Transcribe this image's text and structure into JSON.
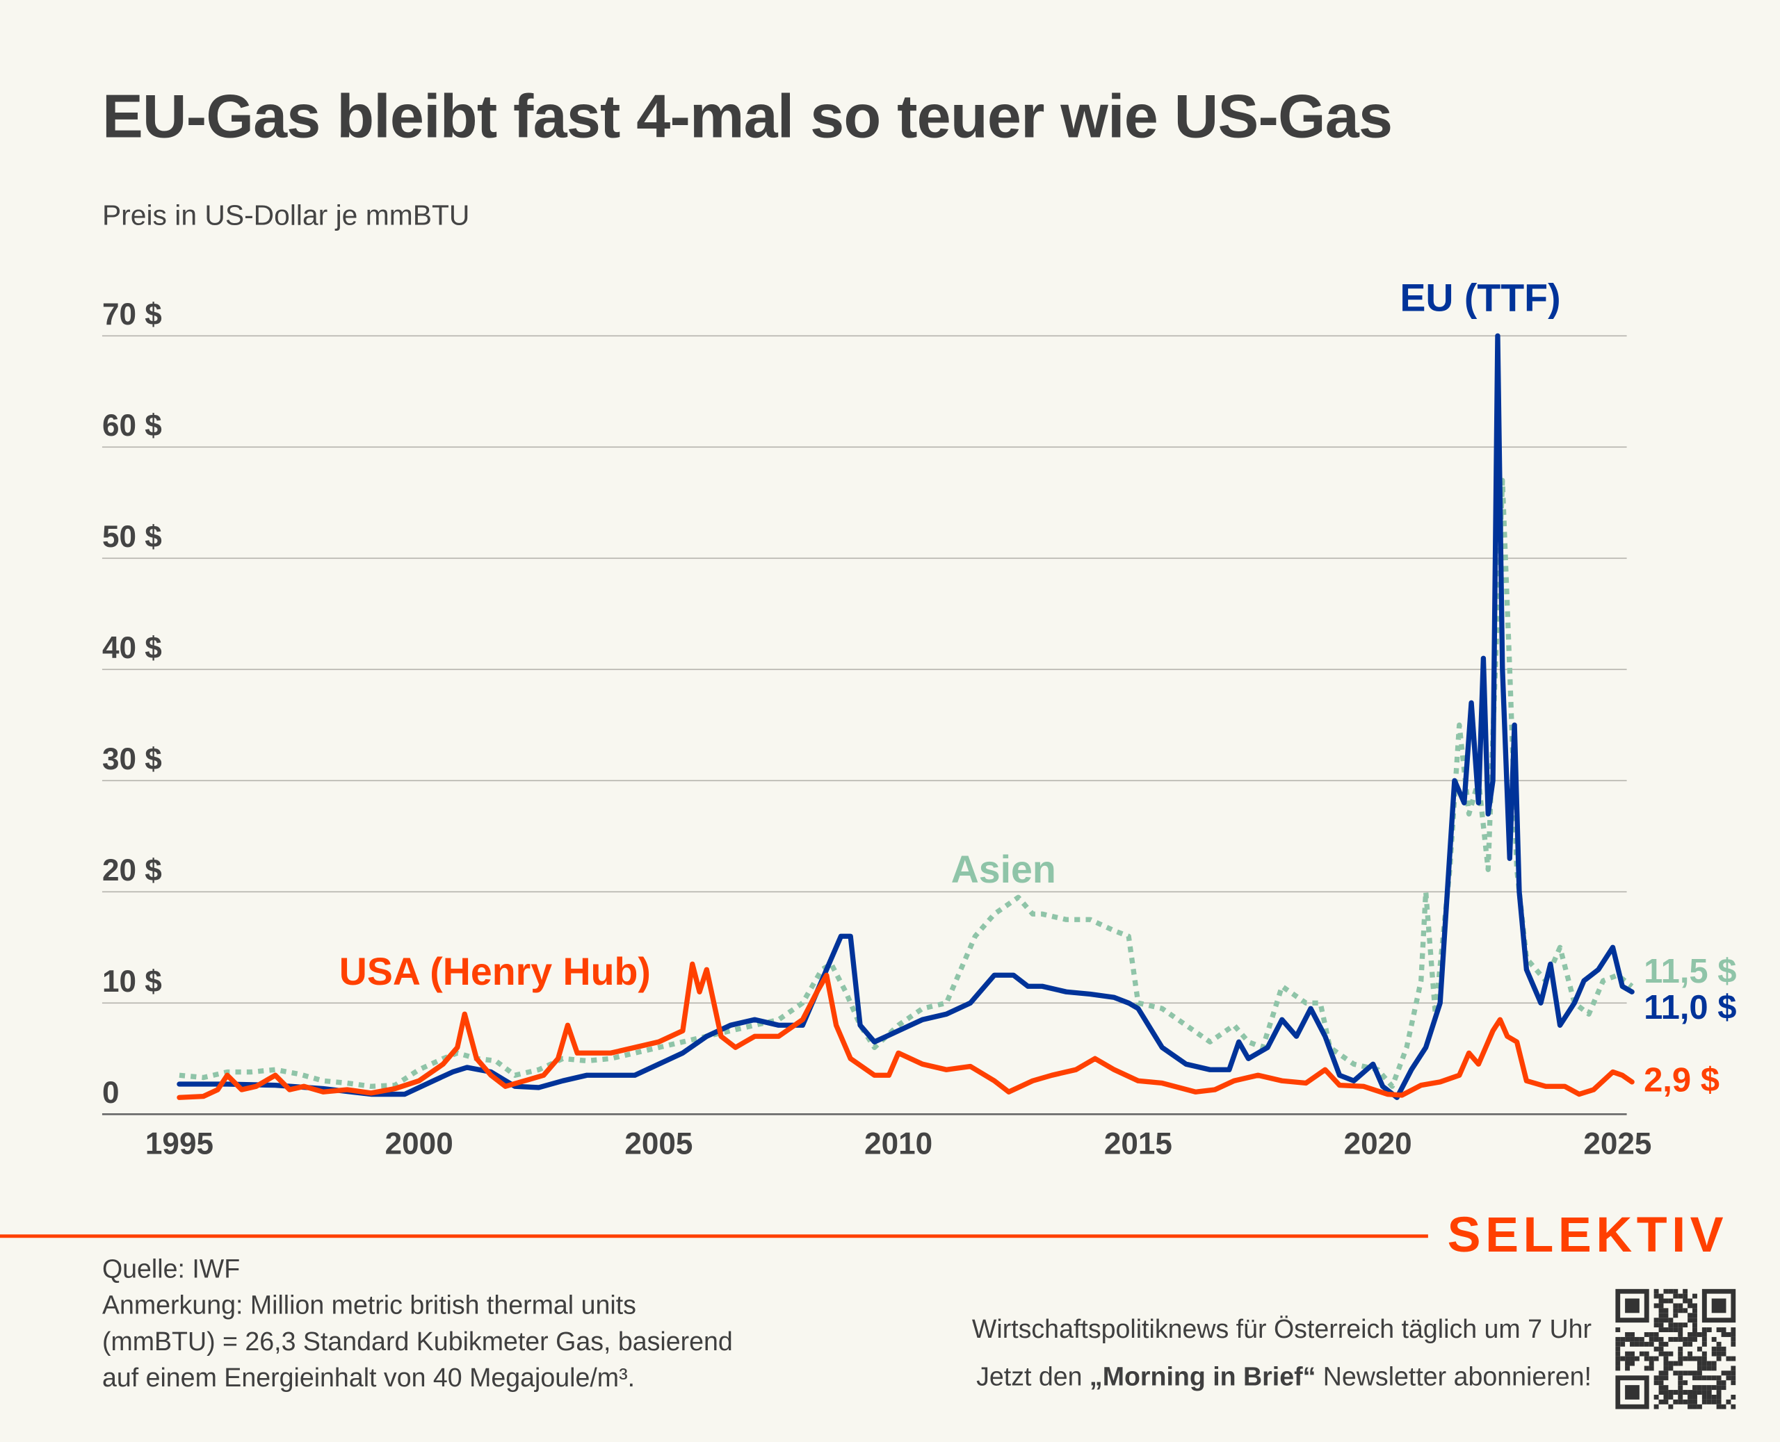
{
  "header": {
    "title": "EU-Gas bleibt fast 4-mal so teuer wie US-Gas",
    "subtitle": "Preis in US-Dollar je mmBTU"
  },
  "colors": {
    "usa": "#ff4000",
    "eu": "#003399",
    "asia": "#8fc4a8",
    "grid": "#b5b3ad",
    "background": "#f8f7f0"
  },
  "chart_data": {
    "type": "line",
    "title": "EU-Gas bleibt fast 4-mal so teuer wie US-Gas",
    "ylabel": "Preis in US-Dollar je mmBTU",
    "xlim": [
      1995,
      2025.3
    ],
    "ylim": [
      0,
      70
    ],
    "grid": true,
    "y_ticks": [
      {
        "v": 0,
        "label": "0"
      },
      {
        "v": 10,
        "label": "10 $"
      },
      {
        "v": 20,
        "label": "20 $"
      },
      {
        "v": 30,
        "label": "30 $"
      },
      {
        "v": 40,
        "label": "40 $"
      },
      {
        "v": 50,
        "label": "50 $"
      },
      {
        "v": 60,
        "label": "60 $"
      },
      {
        "v": 70,
        "label": "70 $"
      }
    ],
    "x_ticks": [
      {
        "v": 1995,
        "label": "1995"
      },
      {
        "v": 2000,
        "label": "2000"
      },
      {
        "v": 2005,
        "label": "2005"
      },
      {
        "v": 2010,
        "label": "2010"
      },
      {
        "v": 2015,
        "label": "2015"
      },
      {
        "v": 2020,
        "label": "2020"
      },
      {
        "v": 2025,
        "label": "2025"
      }
    ],
    "series": [
      {
        "name": "Asien",
        "key": "asia",
        "style": "dotted",
        "label": "Asien",
        "end_label": "11,5 $",
        "x": [
          1995,
          1995.5,
          1996,
          1996.5,
          1997,
          1997.5,
          1998,
          1998.5,
          1999,
          1999.5,
          2000,
          2000.5,
          2000.8,
          2001.2,
          2001.6,
          2002,
          2002.5,
          2003,
          2003.5,
          2004,
          2004.5,
          2005,
          2005.5,
          2006,
          2006.5,
          2007,
          2007.5,
          2008,
          2008.4,
          2008.6,
          2008.9,
          2009.2,
          2009.5,
          2010,
          2010.5,
          2011,
          2011.3,
          2011.6,
          2012,
          2012.5,
          2012.8,
          2013,
          2013.5,
          2014,
          2014.5,
          2014.8,
          2015,
          2015.5,
          2016,
          2016.5,
          2017,
          2017.3,
          2017.6,
          2018,
          2018.5,
          2018.8,
          2019,
          2019.5,
          2020,
          2020.3,
          2020.6,
          2020.9,
          2021,
          2021.2,
          2021.5,
          2021.7,
          2021.9,
          2022.1,
          2022.3,
          2022.45,
          2022.6,
          2022.75,
          2022.9,
          2023.1,
          2023.5,
          2023.8,
          2024.1,
          2024.4,
          2024.7,
          2025,
          2025.3
        ],
        "values": [
          3.5,
          3.3,
          3.8,
          3.8,
          4,
          3.6,
          3,
          2.8,
          2.5,
          2.6,
          4,
          5,
          5.5,
          5,
          4.8,
          3.5,
          4,
          5,
          4.8,
          5,
          5.5,
          6,
          6.5,
          7,
          7.5,
          8,
          8.5,
          10,
          13,
          13.5,
          11,
          8,
          6,
          8,
          9.5,
          10,
          13,
          16,
          18,
          19.5,
          18,
          18,
          17.5,
          17.5,
          16.5,
          16,
          10,
          9.5,
          8,
          6.5,
          8,
          6.5,
          6,
          11.5,
          10,
          10,
          6,
          4.5,
          4,
          2.5,
          6,
          12,
          20,
          9,
          22,
          35,
          27,
          30,
          22,
          40,
          57,
          40,
          22,
          14,
          12,
          15,
          10,
          9,
          12,
          12.5,
          11.5
        ]
      },
      {
        "name": "EU (TTF)",
        "key": "eu",
        "style": "solid",
        "label": "EU (TTF)",
        "end_label": "11,0 $",
        "x": [
          1995,
          1996,
          1997,
          1998,
          1999,
          1999.7,
          2000.3,
          2000.7,
          2001,
          2001.5,
          2002,
          2002.5,
          2003,
          2003.5,
          2004,
          2004.5,
          2005,
          2005.5,
          2006,
          2006.5,
          2007,
          2007.5,
          2008,
          2008.3,
          2008.6,
          2008.8,
          2009,
          2009.2,
          2009.5,
          2010,
          2010.5,
          2011,
          2011.5,
          2012,
          2012.4,
          2012.7,
          2013,
          2013.5,
          2014,
          2014.5,
          2014.8,
          2015,
          2015.5,
          2016,
          2016.5,
          2016.9,
          2017.1,
          2017.3,
          2017.7,
          2018,
          2018.3,
          2018.6,
          2018.9,
          2019.2,
          2019.5,
          2019.9,
          2020.1,
          2020.4,
          2020.7,
          2021,
          2021.3,
          2021.6,
          2021.8,
          2021.95,
          2022.1,
          2022.2,
          2022.3,
          2022.4,
          2022.5,
          2022.6,
          2022.75,
          2022.85,
          2022.95,
          2023.1,
          2023.4,
          2023.6,
          2023.8,
          2024.1,
          2024.3,
          2024.6,
          2024.9,
          2025.1,
          2025.3
        ],
        "values": [
          2.7,
          2.7,
          2.6,
          2.3,
          1.8,
          1.8,
          3,
          3.8,
          4.2,
          3.8,
          2.5,
          2.4,
          3,
          3.5,
          3.5,
          3.5,
          4.5,
          5.5,
          7,
          8,
          8.5,
          8,
          8,
          11,
          14,
          16,
          16,
          8,
          6.5,
          7.5,
          8.5,
          9,
          10,
          12.5,
          12.5,
          11.5,
          11.5,
          11,
          10.8,
          10.5,
          10,
          9.5,
          6,
          4.5,
          4,
          4,
          6.5,
          5,
          6,
          8.5,
          7,
          9.5,
          7,
          3.5,
          3,
          4.5,
          2.5,
          1.5,
          4,
          6,
          10,
          30,
          28,
          37,
          28,
          41,
          27,
          30,
          70,
          40,
          23,
          35,
          20,
          13,
          10,
          13.5,
          8,
          10,
          12,
          13,
          15,
          11.5,
          11
        ]
      },
      {
        "name": "USA (Henry Hub)",
        "key": "usa",
        "style": "solid",
        "label": "USA (Henry Hub)",
        "end_label": "2,9 $",
        "x": [
          1995,
          1995.5,
          1995.8,
          1996,
          1996.3,
          1996.6,
          1997,
          1997.3,
          1997.6,
          1998,
          1998.5,
          1999,
          1999.5,
          2000,
          2000.5,
          2000.8,
          2000.95,
          2001.2,
          2001.5,
          2001.8,
          2002.2,
          2002.6,
          2002.9,
          2003.1,
          2003.3,
          2003.6,
          2004,
          2004.5,
          2005,
          2005.5,
          2005.7,
          2005.85,
          2006,
          2006.3,
          2006.6,
          2006.8,
          2007,
          2007.5,
          2008,
          2008.3,
          2008.5,
          2008.7,
          2009,
          2009.5,
          2009.8,
          2010,
          2010.5,
          2011,
          2011.5,
          2012,
          2012.3,
          2012.8,
          2013.2,
          2013.7,
          2014.1,
          2014.5,
          2015,
          2015.5,
          2016.2,
          2016.6,
          2017,
          2017.5,
          2018,
          2018.5,
          2018.9,
          2019.2,
          2019.7,
          2020.2,
          2020.5,
          2020.9,
          2021.3,
          2021.7,
          2021.9,
          2022.1,
          2022.4,
          2022.55,
          2022.7,
          2022.9,
          2023.1,
          2023.5,
          2023.9,
          2024.2,
          2024.5,
          2024.9,
          2025.1,
          2025.3
        ],
        "values": [
          1.5,
          1.6,
          2.2,
          3.5,
          2.2,
          2.5,
          3.5,
          2.2,
          2.5,
          2,
          2.2,
          1.9,
          2.3,
          3,
          4.5,
          6,
          9,
          5,
          3.5,
          2.5,
          3,
          3.5,
          5,
          8,
          5.5,
          5.5,
          5.5,
          6,
          6.5,
          7.5,
          13.5,
          11,
          13,
          7,
          6,
          6.5,
          7,
          7,
          8.5,
          11,
          12.5,
          8,
          5,
          3.5,
          3.5,
          5.5,
          4.5,
          4,
          4.3,
          3,
          2,
          3,
          3.5,
          4,
          5,
          4,
          3,
          2.8,
          2,
          2.2,
          3,
          3.5,
          3,
          2.8,
          4,
          2.6,
          2.5,
          1.8,
          1.7,
          2.6,
          2.9,
          3.5,
          5.5,
          4.5,
          7.5,
          8.5,
          7,
          6.5,
          3,
          2.5,
          2.5,
          1.8,
          2.2,
          3.8,
          3.5,
          2.9
        ]
      }
    ]
  },
  "footer": {
    "logo": "SELEKTIV",
    "source": "Quelle: IWF",
    "note": "Anmerkung: Million metric british thermal units (mmBTU) = 26,3 Standard Kubikmeter Gas, basierend auf einem Energieinhalt von 40 Megajoule/m³.",
    "promo_line1": "Wirtschaftspolitiknews für Österreich täglich um 7 Uhr",
    "promo_line2_pre": "Jetzt den ",
    "promo_line2_bold": "„Morning in Brief“",
    "promo_line2_post": " Newsletter abonnieren!"
  }
}
